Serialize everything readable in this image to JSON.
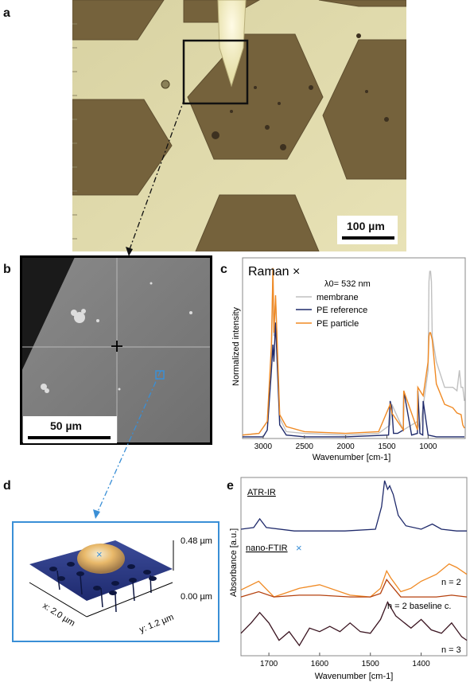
{
  "panels": {
    "a": {
      "letter": "a",
      "scale_bar": "100 µm"
    },
    "b": {
      "letter": "b",
      "scale_bar": "50 µm"
    },
    "c": {
      "letter": "c",
      "title": "Raman",
      "marker": "×",
      "excitation": "λ0= 532 nm",
      "ylabel": "Normalized intensity",
      "xlabel": "Wavenumber [cm-1]",
      "xticks": [
        "3000",
        "2500",
        "2000",
        "1500",
        "1000"
      ],
      "legend": [
        "membrane",
        "PE reference",
        "PE particle"
      ]
    },
    "d": {
      "letter": "d",
      "marker": "×",
      "z_max": "0.48 µm",
      "z_min": "0.00 µm",
      "x_label": "x: 2.0 µm",
      "y_label": "y: 1.2 µm"
    },
    "e": {
      "letter": "e",
      "ylabel": "Absorbance [a.u.]",
      "xlabel": "Wavenumber [cm-1]",
      "xticks": [
        "1700",
        "1600",
        "1500",
        "1400"
      ],
      "atr_label": "ATR-IR",
      "nano_label": "nano-FTIR",
      "marker": "×",
      "n2_label": "n = 2",
      "n2b_label": "n = 2 baseline c.",
      "n3_label": "n = 3"
    }
  },
  "colors": {
    "membrane": "#c0c0c0",
    "pe_reference": "#1f2a6b",
    "pe_particle": "#f08a24",
    "atr": "#1f2a6b",
    "n2": "#f08a24",
    "n2_baseline": "#b5420f",
    "n3": "#3a1420",
    "blue_marker": "#3a8fd6"
  },
  "chart_data": [
    {
      "type": "line",
      "panel": "c",
      "title": "Raman",
      "xlabel": "Wavenumber [cm-1]",
      "ylabel": "Normalized intensity",
      "xlim": [
        3250,
        550
      ],
      "ylim": [
        0,
        1.05
      ],
      "x_reversed": true,
      "series": [
        {
          "name": "membrane",
          "x": [
            3250,
            3050,
            2950,
            2900,
            2882,
            2870,
            2850,
            2800,
            2720,
            2500,
            2000,
            1600,
            1460,
            1440,
            1300,
            1130,
            1100,
            1000,
            990,
            980,
            970,
            960,
            950,
            900,
            800,
            700,
            650,
            620,
            600,
            580,
            560
          ],
          "y": [
            0.02,
            0.03,
            0.1,
            0.5,
            0.98,
            0.6,
            0.82,
            0.12,
            0.04,
            0.03,
            0.02,
            0.03,
            0.08,
            0.2,
            0.05,
            0.1,
            0.05,
            0.4,
            0.92,
            0.98,
            0.98,
            0.92,
            0.6,
            0.45,
            0.3,
            0.3,
            0.28,
            0.4,
            0.3,
            0.3,
            0.22
          ]
        },
        {
          "name": "PE reference",
          "x": [
            3250,
            3000,
            2950,
            2900,
            2882,
            2870,
            2850,
            2800,
            2720,
            2500,
            2000,
            1480,
            1460,
            1440,
            1420,
            1370,
            1300,
            1295,
            1200,
            1130,
            1125,
            1100,
            1065,
            1060,
            1000,
            900,
            700,
            600,
            560
          ],
          "y": [
            0.01,
            0.01,
            0.05,
            0.4,
            0.55,
            0.45,
            0.68,
            0.08,
            0.02,
            0.01,
            0.01,
            0.02,
            0.22,
            0.18,
            0.03,
            0.03,
            0.05,
            0.28,
            0.02,
            0.03,
            0.28,
            0.03,
            0.02,
            0.22,
            0.02,
            0.01,
            0.01,
            0.01,
            0.01
          ]
        },
        {
          "name": "PE particle",
          "x": [
            3250,
            3050,
            2950,
            2900,
            2882,
            2870,
            2850,
            2800,
            2720,
            2500,
            2000,
            1600,
            1460,
            1440,
            1300,
            1295,
            1130,
            1125,
            1060,
            1000,
            990,
            980,
            970,
            950,
            900,
            800,
            700,
            650,
            600,
            580,
            560
          ],
          "y": [
            0.02,
            0.03,
            0.1,
            0.55,
            1.0,
            0.62,
            0.84,
            0.14,
            0.07,
            0.04,
            0.03,
            0.04,
            0.2,
            0.15,
            0.05,
            0.28,
            0.05,
            0.3,
            0.25,
            0.45,
            0.6,
            0.62,
            0.62,
            0.58,
            0.32,
            0.2,
            0.18,
            0.15,
            0.14,
            0.08,
            0.06
          ]
        }
      ]
    },
    {
      "type": "line",
      "panel": "e",
      "xlabel": "Wavenumber [cm-1]",
      "ylabel": "Absorbance [a.u.]",
      "xlim": [
        1755,
        1310
      ],
      "x_reversed": true,
      "series": [
        {
          "name": "ATR-IR",
          "x": [
            1755,
            1730,
            1718,
            1705,
            1650,
            1550,
            1490,
            1478,
            1472,
            1466,
            1462,
            1455,
            1445,
            1430,
            1400,
            1378,
            1360,
            1330,
            1310
          ],
          "y": [
            0.72,
            0.73,
            0.78,
            0.73,
            0.71,
            0.71,
            0.72,
            0.85,
            1.0,
            0.95,
            0.97,
            0.92,
            0.8,
            0.74,
            0.72,
            0.75,
            0.72,
            0.71,
            0.71
          ]
        },
        {
          "name": "n = 2",
          "x": [
            1755,
            1720,
            1690,
            1640,
            1600,
            1540,
            1500,
            1480,
            1468,
            1460,
            1440,
            1420,
            1400,
            1370,
            1345,
            1330,
            1310
          ],
          "y": [
            0.37,
            0.42,
            0.33,
            0.38,
            0.4,
            0.34,
            0.33,
            0.38,
            0.48,
            0.44,
            0.36,
            0.38,
            0.42,
            0.46,
            0.52,
            0.5,
            0.46
          ]
        },
        {
          "name": "n = 2 baseline c.",
          "x": [
            1755,
            1720,
            1690,
            1640,
            1600,
            1540,
            1500,
            1480,
            1468,
            1460,
            1440,
            1400,
            1370,
            1340,
            1310
          ],
          "y": [
            0.33,
            0.36,
            0.33,
            0.34,
            0.34,
            0.33,
            0.33,
            0.35,
            0.43,
            0.4,
            0.33,
            0.33,
            0.33,
            0.34,
            0.33
          ]
        },
        {
          "name": "n = 3",
          "x": [
            1755,
            1735,
            1718,
            1700,
            1680,
            1660,
            1640,
            1620,
            1600,
            1580,
            1560,
            1540,
            1520,
            1500,
            1480,
            1466,
            1450,
            1420,
            1400,
            1380,
            1360,
            1340,
            1320,
            1310
          ],
          "y": [
            0.12,
            0.18,
            0.24,
            0.18,
            0.08,
            0.13,
            0.05,
            0.15,
            0.13,
            0.16,
            0.13,
            0.18,
            0.13,
            0.12,
            0.2,
            0.3,
            0.22,
            0.15,
            0.2,
            0.14,
            0.12,
            0.18,
            0.1,
            0.08
          ]
        }
      ]
    }
  ]
}
